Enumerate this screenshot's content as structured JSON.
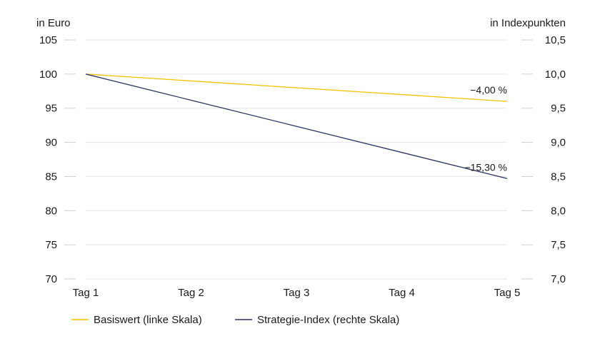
{
  "chart_data": {
    "type": "line",
    "title": "",
    "categories": [
      "Tag 1",
      "Tag 2",
      "Tag 3",
      "Tag 4",
      "Tag 5"
    ],
    "left_axis": {
      "label": "in Euro",
      "ylim": [
        70,
        105
      ],
      "ticks": [
        "105",
        "100",
        "95",
        "90",
        "85",
        "80",
        "75",
        "70"
      ],
      "tick_values": [
        105,
        100,
        95,
        90,
        85,
        80,
        75,
        70
      ]
    },
    "right_axis": {
      "label": "in Indexpunkten",
      "ylim": [
        7.0,
        10.5
      ],
      "ticks": [
        "10,5",
        "10,0",
        "9,5",
        "9,0",
        "8,5",
        "8,0",
        "7,5",
        "7,0"
      ],
      "tick_values": [
        10.5,
        10.0,
        9.5,
        9.0,
        8.5,
        8.0,
        7.5,
        7.0
      ]
    },
    "series": [
      {
        "name": "Basiswert (linke Skala)",
        "axis": "left",
        "color": "#f2c200",
        "values": [
          100,
          99,
          98,
          97,
          96
        ],
        "end_label": "−4,00 %"
      },
      {
        "name": "Strategie-Index (rechte Skala)",
        "axis": "right",
        "color": "#2e3563",
        "values": [
          10.0,
          9.6175,
          9.235,
          8.8525,
          8.47
        ],
        "end_label": "−15,30 %"
      }
    ],
    "grid": true,
    "legend_position": "bottom-left"
  }
}
